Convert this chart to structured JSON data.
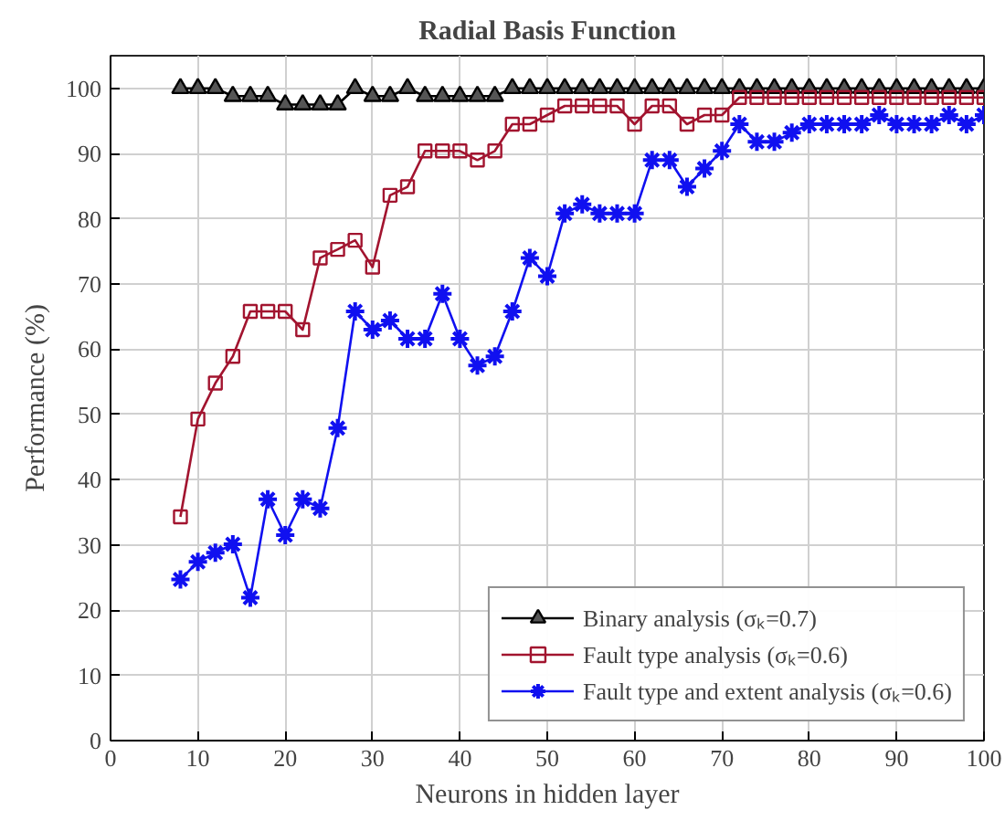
{
  "chart_data": {
    "type": "line",
    "title": "Radial Basis Function",
    "xlabel": "Neurons in hidden layer",
    "ylabel": "Performance (%)",
    "x": [
      8,
      10,
      12,
      14,
      16,
      18,
      20,
      22,
      24,
      26,
      28,
      30,
      32,
      34,
      36,
      38,
      40,
      42,
      44,
      46,
      48,
      50,
      52,
      54,
      56,
      58,
      60,
      62,
      64,
      66,
      68,
      70,
      72,
      74,
      76,
      78,
      80,
      82,
      84,
      86,
      88,
      90,
      92,
      94,
      96,
      98,
      100
    ],
    "series": [
      {
        "name": "Binary analysis (σₖ=0.7)",
        "color": "#000000",
        "marker": "triangle",
        "values": [
          100,
          100,
          100,
          98.8,
          98.8,
          98.8,
          97.5,
          97.5,
          97.5,
          97.5,
          100,
          98.8,
          98.8,
          100,
          98.8,
          98.8,
          98.8,
          98.8,
          98.8,
          100,
          100,
          100,
          100,
          100,
          100,
          100,
          100,
          100,
          100,
          100,
          100,
          100,
          100,
          100,
          100,
          100,
          100,
          100,
          100,
          100,
          100,
          100,
          100,
          100,
          100,
          100,
          100
        ]
      },
      {
        "name": "Fault type analysis (σₖ=0.6)",
        "color": "#a2142f",
        "marker": "square",
        "values": [
          34.3,
          49.3,
          54.8,
          58.9,
          65.8,
          65.8,
          65.8,
          63.0,
          74.0,
          75.3,
          76.7,
          72.6,
          83.6,
          84.9,
          90.4,
          90.4,
          90.4,
          89.0,
          90.4,
          94.5,
          94.5,
          95.9,
          97.3,
          97.3,
          97.3,
          97.3,
          94.5,
          97.3,
          97.3,
          94.5,
          95.9,
          95.9,
          98.6,
          98.6,
          98.6,
          98.6,
          98.6,
          98.6,
          98.6,
          98.6,
          98.6,
          98.6,
          98.6,
          98.6,
          98.6,
          98.6,
          98.6
        ]
      },
      {
        "name": "Fault type and extent analysis (σₖ=0.6)",
        "color": "#1010f0",
        "marker": "cross",
        "values": [
          24.7,
          27.4,
          28.8,
          30.1,
          21.9,
          37.0,
          31.5,
          37.0,
          35.6,
          47.9,
          65.8,
          63.0,
          64.4,
          61.6,
          61.6,
          68.5,
          61.6,
          57.5,
          58.9,
          65.8,
          74.0,
          71.2,
          80.8,
          82.2,
          80.8,
          80.8,
          80.8,
          89.0,
          89.0,
          84.9,
          87.7,
          90.4,
          94.5,
          91.8,
          91.8,
          93.2,
          94.5,
          94.5,
          94.5,
          94.5,
          95.9,
          94.5,
          94.5,
          94.5,
          95.9,
          94.5,
          95.9
        ]
      }
    ],
    "xlim": [
      0,
      100
    ],
    "xticks": [
      0,
      10,
      20,
      30,
      40,
      50,
      60,
      70,
      80,
      90,
      100
    ],
    "ylim": [
      0,
      105
    ],
    "yticks": [
      0,
      10,
      20,
      30,
      40,
      50,
      60,
      70,
      80,
      90,
      100
    ],
    "grid": true,
    "legend": "bottom right",
    "line_style": "solid"
  }
}
